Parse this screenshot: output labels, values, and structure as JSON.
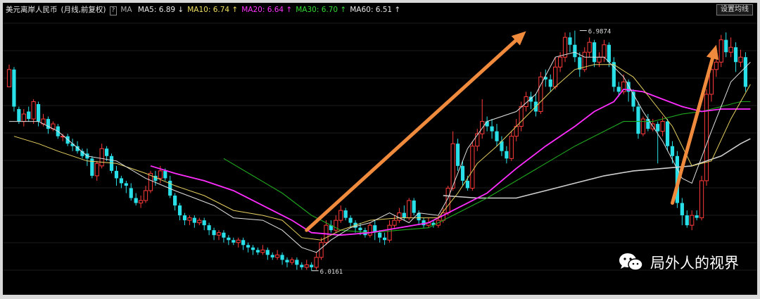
{
  "header": {
    "symbol": "美元离岸人民币",
    "period": "(月线,前复权)",
    "help": "?",
    "ma_label": "MA",
    "ma_items": [
      {
        "label": "MA5:",
        "value": "6.89",
        "arrow": "↓",
        "color": "#e8e8e8"
      },
      {
        "label": "MA10:",
        "value": "6.74",
        "arrow": "↑",
        "color": "#f0e060"
      },
      {
        "label": "MA20:",
        "value": "6.64",
        "arrow": "↑",
        "color": "#ff33ff"
      },
      {
        "label": "MA30:",
        "value": "6.70",
        "arrow": "↑",
        "color": "#33dd33"
      },
      {
        "label": "MA60:",
        "value": "6.51",
        "arrow": "↑",
        "color": "#e8e8e8"
      }
    ],
    "settings_button": "设置均线"
  },
  "watermark": {
    "text": "局外人的视界",
    "icon": "wechat-icon"
  },
  "chart_data": {
    "type": "candlestick",
    "ylim": [
      5.95,
      7.06
    ],
    "colors": {
      "up": "#ff3b3b",
      "down": "#29e0e8",
      "ma5": "#e0e0e0",
      "ma10": "#e6d060",
      "ma20": "#ff2dff",
      "ma30": "#1fa81f",
      "ma60": "#cfcfcf",
      "arrow": "#f08a3c"
    },
    "annotations": [
      {
        "text": "6.9874",
        "index": 117,
        "value": 6.9874,
        "kind": "high"
      },
      {
        "text": "6.0161",
        "index": 62,
        "value": 6.0161,
        "kind": "low"
      }
    ],
    "arrows": [
      {
        "from": [
          61,
          6.18
        ],
        "to": [
          106,
          6.985
        ]
      },
      {
        "from": [
          136,
          6.29
        ],
        "to": [
          145,
          6.93
        ]
      }
    ],
    "ma_lines": {
      "ma5": [
        [
          0,
          6.62
        ],
        [
          6,
          6.62
        ],
        [
          10,
          6.58
        ],
        [
          16,
          6.48
        ],
        [
          22,
          6.46
        ],
        [
          28,
          6.39
        ],
        [
          34,
          6.34
        ],
        [
          38,
          6.31
        ],
        [
          42,
          6.28
        ],
        [
          46,
          6.23
        ],
        [
          52,
          6.22
        ],
        [
          56,
          6.18
        ],
        [
          60,
          6.11
        ],
        [
          63,
          6.09
        ],
        [
          66,
          6.14
        ],
        [
          70,
          6.19
        ],
        [
          74,
          6.21
        ],
        [
          78,
          6.25
        ],
        [
          82,
          6.21
        ],
        [
          84,
          6.25
        ],
        [
          88,
          6.24
        ],
        [
          90,
          6.31
        ],
        [
          94,
          6.51
        ],
        [
          98,
          6.62
        ],
        [
          104,
          6.66
        ],
        [
          108,
          6.73
        ],
        [
          112,
          6.88
        ],
        [
          116,
          6.9
        ],
        [
          118,
          6.88
        ],
        [
          122,
          6.88
        ],
        [
          126,
          6.8
        ],
        [
          130,
          6.66
        ],
        [
          134,
          6.54
        ],
        [
          138,
          6.39
        ],
        [
          140,
          6.37
        ],
        [
          144,
          6.58
        ],
        [
          148,
          6.78
        ],
        [
          152,
          6.86
        ]
      ],
      "ma10": [
        [
          1,
          6.56
        ],
        [
          6,
          6.53
        ],
        [
          10,
          6.5
        ],
        [
          16,
          6.46
        ],
        [
          22,
          6.45
        ],
        [
          28,
          6.41
        ],
        [
          34,
          6.36
        ],
        [
          40,
          6.32
        ],
        [
          46,
          6.26
        ],
        [
          52,
          6.24
        ],
        [
          56,
          6.22
        ],
        [
          60,
          6.15
        ],
        [
          64,
          6.14
        ],
        [
          68,
          6.18
        ],
        [
          74,
          6.22
        ],
        [
          80,
          6.23
        ],
        [
          84,
          6.23
        ],
        [
          88,
          6.23
        ],
        [
          92,
          6.33
        ],
        [
          96,
          6.45
        ],
        [
          100,
          6.52
        ],
        [
          104,
          6.6
        ],
        [
          108,
          6.68
        ],
        [
          112,
          6.76
        ],
        [
          116,
          6.83
        ],
        [
          120,
          6.85
        ],
        [
          124,
          6.85
        ],
        [
          128,
          6.8
        ],
        [
          132,
          6.7
        ],
        [
          136,
          6.6
        ],
        [
          140,
          6.44
        ],
        [
          144,
          6.46
        ],
        [
          148,
          6.63
        ],
        [
          152,
          6.77
        ]
      ],
      "ma20": [
        [
          29,
          6.44
        ],
        [
          34,
          6.41
        ],
        [
          40,
          6.38
        ],
        [
          46,
          6.34
        ],
        [
          52,
          6.28
        ],
        [
          58,
          6.22
        ],
        [
          62,
          6.17
        ],
        [
          68,
          6.16
        ],
        [
          74,
          6.17
        ],
        [
          80,
          6.19
        ],
        [
          86,
          6.21
        ],
        [
          92,
          6.27
        ],
        [
          98,
          6.33
        ],
        [
          104,
          6.43
        ],
        [
          110,
          6.52
        ],
        [
          116,
          6.6
        ],
        [
          120,
          6.66
        ],
        [
          124,
          6.7
        ],
        [
          126,
          6.75
        ],
        [
          130,
          6.74
        ],
        [
          134,
          6.71
        ],
        [
          138,
          6.68
        ],
        [
          142,
          6.66
        ],
        [
          146,
          6.67
        ],
        [
          152,
          6.67
        ]
      ],
      "ma30": [
        [
          44,
          6.47
        ],
        [
          50,
          6.4
        ],
        [
          56,
          6.33
        ],
        [
          62,
          6.24
        ],
        [
          68,
          6.18
        ],
        [
          74,
          6.17
        ],
        [
          80,
          6.18
        ],
        [
          86,
          6.19
        ],
        [
          92,
          6.25
        ],
        [
          98,
          6.31
        ],
        [
          104,
          6.38
        ],
        [
          110,
          6.45
        ],
        [
          116,
          6.52
        ],
        [
          122,
          6.58
        ],
        [
          126,
          6.62
        ],
        [
          132,
          6.62
        ],
        [
          138,
          6.65
        ],
        [
          142,
          6.66
        ],
        [
          146,
          6.68
        ],
        [
          150,
          6.7
        ],
        [
          152,
          6.7
        ]
      ],
      "ma60": [
        [
          89,
          6.32
        ],
        [
          96,
          6.31
        ],
        [
          104,
          6.31
        ],
        [
          110,
          6.34
        ],
        [
          116,
          6.37
        ],
        [
          122,
          6.4
        ],
        [
          128,
          6.42
        ],
        [
          134,
          6.43
        ],
        [
          140,
          6.44
        ],
        [
          146,
          6.48
        ],
        [
          150,
          6.53
        ],
        [
          152,
          6.55
        ]
      ]
    },
    "candles": [
      [
        6.76,
        6.83,
        6.85,
        6.76
      ],
      [
        6.83,
        6.68,
        6.84,
        6.66
      ],
      [
        6.67,
        6.62,
        6.68,
        6.61
      ],
      [
        6.62,
        6.65,
        6.67,
        6.6
      ],
      [
        6.66,
        6.63,
        6.68,
        6.62
      ],
      [
        6.63,
        6.7,
        6.71,
        6.61
      ],
      [
        6.69,
        6.62,
        6.7,
        6.6
      ],
      [
        6.61,
        6.63,
        6.65,
        6.6
      ],
      [
        6.63,
        6.59,
        6.64,
        6.57
      ],
      [
        6.59,
        6.61,
        6.62,
        6.58
      ],
      [
        6.6,
        6.56,
        6.61,
        6.55
      ],
      [
        6.56,
        6.56,
        6.57,
        6.54
      ],
      [
        6.56,
        6.53,
        6.57,
        6.52
      ],
      [
        6.53,
        6.52,
        6.55,
        6.5
      ],
      [
        6.52,
        6.5,
        6.54,
        6.49
      ],
      [
        6.5,
        6.48,
        6.51,
        6.47
      ],
      [
        6.49,
        6.47,
        6.51,
        6.44
      ],
      [
        6.47,
        6.4,
        6.48,
        6.39
      ],
      [
        6.4,
        6.45,
        6.46,
        6.38
      ],
      [
        6.44,
        6.51,
        6.53,
        6.43
      ],
      [
        6.51,
        6.48,
        6.52,
        6.46
      ],
      [
        6.48,
        6.42,
        6.49,
        6.41
      ],
      [
        6.42,
        6.39,
        6.44,
        6.36
      ],
      [
        6.39,
        6.37,
        6.4,
        6.35
      ],
      [
        6.37,
        6.36,
        6.38,
        6.33
      ],
      [
        6.35,
        6.31,
        6.37,
        6.3
      ],
      [
        6.31,
        6.29,
        6.33,
        6.28
      ],
      [
        6.29,
        6.3,
        6.32,
        6.27
      ],
      [
        6.3,
        6.34,
        6.36,
        6.29
      ],
      [
        6.34,
        6.41,
        6.42,
        6.33
      ],
      [
        6.4,
        6.38,
        6.42,
        6.36
      ],
      [
        6.39,
        6.42,
        6.44,
        6.37
      ],
      [
        6.42,
        6.39,
        6.43,
        6.38
      ],
      [
        6.38,
        6.32,
        6.4,
        6.31
      ],
      [
        6.32,
        6.28,
        6.33,
        6.26
      ],
      [
        6.28,
        6.24,
        6.29,
        6.22
      ],
      [
        6.24,
        6.22,
        6.25,
        6.2
      ],
      [
        6.22,
        6.23,
        6.24,
        6.2
      ],
      [
        6.23,
        6.21,
        6.24,
        6.19
      ],
      [
        6.21,
        6.22,
        6.23,
        6.2
      ],
      [
        6.22,
        6.2,
        6.23,
        6.18
      ],
      [
        6.2,
        6.18,
        6.21,
        6.16
      ],
      [
        6.18,
        6.16,
        6.19,
        6.14
      ],
      [
        6.16,
        6.17,
        6.18,
        6.14
      ],
      [
        6.17,
        6.15,
        6.18,
        6.13
      ],
      [
        6.15,
        6.14,
        6.16,
        6.12
      ],
      [
        6.14,
        6.13,
        6.15,
        6.12
      ],
      [
        6.13,
        6.14,
        6.15,
        6.11
      ],
      [
        6.14,
        6.12,
        6.15,
        6.1
      ],
      [
        6.12,
        6.11,
        6.13,
        6.09
      ],
      [
        6.11,
        6.1,
        6.12,
        6.08
      ],
      [
        6.1,
        6.09,
        6.11,
        6.08
      ],
      [
        6.09,
        6.1,
        6.12,
        6.08
      ],
      [
        6.1,
        6.08,
        6.11,
        6.06
      ],
      [
        6.08,
        6.07,
        6.09,
        6.06
      ],
      [
        6.07,
        6.08,
        6.1,
        6.06
      ],
      [
        6.08,
        6.06,
        6.09,
        6.04
      ],
      [
        6.06,
        6.05,
        6.07,
        6.03
      ],
      [
        6.05,
        6.06,
        6.07,
        6.04
      ],
      [
        6.06,
        6.04,
        6.07,
        6.02
      ],
      [
        6.04,
        6.03,
        6.05,
        6.02
      ],
      [
        6.03,
        6.04,
        6.06,
        6.02
      ],
      [
        6.04,
        6.03,
        6.05,
        6.016
      ],
      [
        6.03,
        6.07,
        6.09,
        6.02
      ],
      [
        6.07,
        6.13,
        6.15,
        6.06
      ],
      [
        6.13,
        6.2,
        6.22,
        6.12
      ],
      [
        6.2,
        6.18,
        6.22,
        6.17
      ],
      [
        6.18,
        6.22,
        6.24,
        6.17
      ],
      [
        6.22,
        6.26,
        6.28,
        6.21
      ],
      [
        6.26,
        6.23,
        6.27,
        6.22
      ],
      [
        6.23,
        6.21,
        6.24,
        6.19
      ],
      [
        6.21,
        6.19,
        6.22,
        6.17
      ],
      [
        6.19,
        6.18,
        6.21,
        6.16
      ],
      [
        6.18,
        6.16,
        6.19,
        6.15
      ],
      [
        6.16,
        6.2,
        6.21,
        6.15
      ],
      [
        6.2,
        6.17,
        6.22,
        6.14
      ],
      [
        6.17,
        6.15,
        6.18,
        6.13
      ],
      [
        6.15,
        6.14,
        6.17,
        6.12
      ],
      [
        6.14,
        6.2,
        6.22,
        6.13
      ],
      [
        6.2,
        6.22,
        6.24,
        6.19
      ],
      [
        6.22,
        6.25,
        6.27,
        6.21
      ],
      [
        6.25,
        6.23,
        6.28,
        6.22
      ],
      [
        6.23,
        6.3,
        6.31,
        6.22
      ],
      [
        6.3,
        6.25,
        6.31,
        6.24
      ],
      [
        6.25,
        6.22,
        6.26,
        6.2
      ],
      [
        6.22,
        6.2,
        6.23,
        6.19
      ],
      [
        6.2,
        6.21,
        6.23,
        6.19
      ],
      [
        6.21,
        6.2,
        6.22,
        6.19
      ],
      [
        6.2,
        6.22,
        6.24,
        6.19
      ],
      [
        6.22,
        6.25,
        6.27,
        6.21
      ],
      [
        6.25,
        6.35,
        6.36,
        6.24
      ],
      [
        6.35,
        6.53,
        6.58,
        6.34
      ],
      [
        6.53,
        6.44,
        6.55,
        6.42
      ],
      [
        6.44,
        6.38,
        6.46,
        6.36
      ],
      [
        6.38,
        6.35,
        6.4,
        6.34
      ],
      [
        6.35,
        6.52,
        6.54,
        6.34
      ],
      [
        6.52,
        6.57,
        6.59,
        6.5
      ],
      [
        6.57,
        6.62,
        6.71,
        6.55
      ],
      [
        6.62,
        6.6,
        6.64,
        6.58
      ],
      [
        6.6,
        6.58,
        6.63,
        6.55
      ],
      [
        6.58,
        6.54,
        6.61,
        6.52
      ],
      [
        6.54,
        6.5,
        6.56,
        6.48
      ],
      [
        6.5,
        6.47,
        6.52,
        6.45
      ],
      [
        6.47,
        6.56,
        6.58,
        6.46
      ],
      [
        6.56,
        6.6,
        6.63,
        6.54
      ],
      [
        6.6,
        6.68,
        6.7,
        6.58
      ],
      [
        6.68,
        6.72,
        6.74,
        6.66
      ],
      [
        6.72,
        6.7,
        6.74,
        6.67
      ],
      [
        6.7,
        6.66,
        6.73,
        6.64
      ],
      [
        6.66,
        6.8,
        6.82,
        6.65
      ],
      [
        6.8,
        6.79,
        6.83,
        6.76
      ],
      [
        6.79,
        6.76,
        6.81,
        6.74
      ],
      [
        6.76,
        6.84,
        6.88,
        6.75
      ],
      [
        6.84,
        6.88,
        6.9,
        6.82
      ],
      [
        6.88,
        6.96,
        6.98,
        6.86
      ],
      [
        6.96,
        6.93,
        6.98,
        6.9
      ],
      [
        6.93,
        6.88,
        6.9874,
        6.86
      ],
      [
        6.88,
        6.83,
        6.9,
        6.8
      ],
      [
        6.83,
        6.9,
        6.92,
        6.82
      ],
      [
        6.9,
        6.94,
        6.96,
        6.88
      ],
      [
        6.94,
        6.86,
        6.95,
        6.84
      ],
      [
        6.86,
        6.88,
        6.9,
        6.84
      ],
      [
        6.88,
        6.93,
        6.95,
        6.86
      ],
      [
        6.93,
        6.86,
        6.94,
        6.84
      ],
      [
        6.86,
        6.76,
        6.88,
        6.74
      ],
      [
        6.76,
        6.74,
        6.78,
        6.72
      ],
      [
        6.74,
        6.78,
        6.81,
        6.73
      ],
      [
        6.78,
        6.74,
        6.79,
        6.7
      ],
      [
        6.74,
        6.68,
        6.75,
        6.66
      ],
      [
        6.68,
        6.57,
        6.7,
        6.55
      ],
      [
        6.57,
        6.63,
        6.64,
        6.56
      ],
      [
        6.63,
        6.59,
        6.65,
        6.58
      ],
      [
        6.59,
        6.61,
        6.63,
        6.58
      ],
      [
        6.61,
        6.58,
        6.62,
        6.45
      ],
      [
        6.58,
        6.62,
        6.64,
        6.56
      ],
      [
        6.62,
        6.52,
        6.63,
        6.5
      ],
      [
        6.52,
        6.48,
        6.54,
        6.45
      ],
      [
        6.48,
        6.29,
        6.5,
        6.27
      ],
      [
        6.29,
        6.24,
        6.31,
        6.2
      ],
      [
        6.24,
        6.2,
        6.26,
        6.19
      ],
      [
        6.2,
        6.24,
        6.26,
        6.18
      ],
      [
        6.24,
        6.23,
        6.26,
        6.22
      ],
      [
        6.23,
        6.38,
        6.4,
        6.22
      ],
      [
        6.38,
        6.73,
        6.75,
        6.36
      ],
      [
        6.73,
        6.83,
        6.86,
        6.7
      ],
      [
        6.83,
        6.86,
        6.88,
        6.8
      ],
      [
        6.86,
        6.95,
        6.97,
        6.84
      ],
      [
        6.95,
        6.9,
        6.98,
        6.88
      ],
      [
        6.9,
        6.92,
        6.96,
        6.88
      ],
      [
        6.92,
        6.86,
        6.94,
        6.82
      ],
      [
        6.86,
        6.88,
        6.91,
        6.84
      ],
      [
        6.88,
        6.76,
        6.9,
        6.74
      ]
    ]
  }
}
